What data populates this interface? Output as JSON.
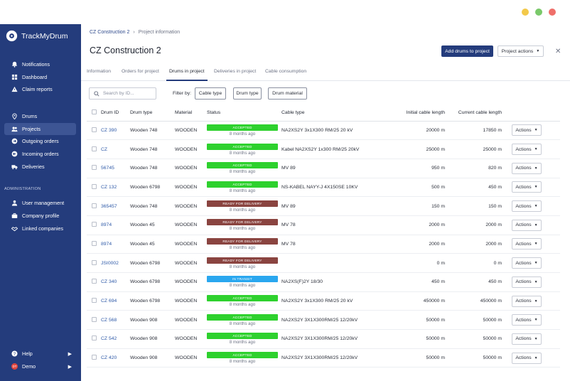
{
  "window": {
    "dots": [
      "#f3c94a",
      "#7ac96a",
      "#ef6f6a"
    ]
  },
  "brand": {
    "name": "TrackMyDrum"
  },
  "sidebar": {
    "items": [
      {
        "label": "Notifications",
        "icon": "bell-icon"
      },
      {
        "label": "Dashboard",
        "icon": "dashboard-icon"
      },
      {
        "label": "Claim reports",
        "icon": "warning-icon"
      },
      {
        "label": "Drums",
        "icon": "location-pin-icon"
      },
      {
        "label": "Projects",
        "icon": "users-icon"
      },
      {
        "label": "Outgoing orders",
        "icon": "arrow-right-circle-icon"
      },
      {
        "label": "Incoming orders",
        "icon": "arrow-left-circle-icon"
      },
      {
        "label": "Deliveries",
        "icon": "truck-icon"
      }
    ],
    "admin_header": "ADMINISTRATION",
    "admin_items": [
      {
        "label": "User management",
        "icon": "user-group-icon"
      },
      {
        "label": "Company profile",
        "icon": "briefcase-icon"
      },
      {
        "label": "Linked companies",
        "icon": "handshake-icon"
      }
    ],
    "help_label": "Help",
    "user_label": "Demo",
    "user_initials": "DT"
  },
  "breadcrumb": {
    "parent": "CZ Construction 2",
    "current": "Project information"
  },
  "page": {
    "title": "CZ Construction 2",
    "add_button": "Add drums to project",
    "actions_button": "Project actions"
  },
  "tabs": [
    "Information",
    "Orders for project",
    "Drums in project",
    "Deliveries in project",
    "Cable consumption"
  ],
  "active_tab": "Drums in project",
  "search": {
    "placeholder": "Search by ID..."
  },
  "filters": {
    "label": "Filter by:",
    "buttons": [
      "Cable type",
      "Drum type",
      "Drum material"
    ]
  },
  "table": {
    "headers": [
      "Drum ID",
      "Drum type",
      "Material",
      "Status",
      "Cable type",
      "Initial cable length",
      "Current cable length"
    ],
    "action_label": "Actions",
    "rows": [
      {
        "id": "CZ 390",
        "type": "Wooden 748",
        "material": "WOODEN",
        "status": "ACCEPTED",
        "status_color": "#2ed12e",
        "age": "8 months ago",
        "cable": "NA2XS2Y 3x1X300 RM/25 20 kV",
        "initial": "20000 m",
        "current": "17850 m"
      },
      {
        "id": "CZ",
        "type": "Wooden 748",
        "material": "WOODEN",
        "status": "ACCEPTED",
        "status_color": "#2ed12e",
        "age": "8 months ago",
        "cable": "Kabel NA2XS2Y 1x300 RM/25 20kV",
        "initial": "25000 m",
        "current": "25000 m"
      },
      {
        "id": "56745",
        "type": "Wooden 748",
        "material": "WOODEN",
        "status": "ACCEPTED",
        "status_color": "#2ed12e",
        "age": "8 months ago",
        "cable": "MV 89",
        "initial": "950 m",
        "current": "820 m"
      },
      {
        "id": "CZ 132",
        "type": "Wooden 6798",
        "material": "WOODEN",
        "status": "ACCEPTED",
        "status_color": "#2ed12e",
        "age": "8 months ago",
        "cable": "NS-KABEL NAYY-J 4X150SE 10KV",
        "initial": "500 m",
        "current": "450 m"
      },
      {
        "id": "365457",
        "type": "Wooden 748",
        "material": "WOODEN",
        "status": "READY FOR DELIVERY",
        "status_color": "#8a4440",
        "age": "8 months ago",
        "cable": "MV 89",
        "initial": "150 m",
        "current": "150 m"
      },
      {
        "id": "8974",
        "type": "Wooden 45",
        "material": "WOODEN",
        "status": "READY FOR DELIVERY",
        "status_color": "#8a4440",
        "age": "8 months ago",
        "cable": "MV 78",
        "initial": "2000 m",
        "current": "2000 m"
      },
      {
        "id": "8974",
        "type": "Wooden 45",
        "material": "WOODEN",
        "status": "READY FOR DELIVERY",
        "status_color": "#8a4440",
        "age": "8 months ago",
        "cable": "MV 78",
        "initial": "2000 m",
        "current": "2000 m"
      },
      {
        "id": "JSI0002",
        "type": "Wooden 6798",
        "material": "WOODEN",
        "status": "READY FOR DELIVERY",
        "status_color": "#8a4440",
        "age": "8 months ago",
        "cable": "",
        "initial": "0 m",
        "current": "0 m"
      },
      {
        "id": "CZ 340",
        "type": "Wooden 6798",
        "material": "WOODEN",
        "status": "IN TRANSIT",
        "status_color": "#2aa7ef",
        "age": "8 months ago",
        "cable": "NA2XS(F)2Y 18/30",
        "initial": "450 m",
        "current": "450 m"
      },
      {
        "id": "CZ 694",
        "type": "Wooden 6798",
        "material": "WOODEN",
        "status": "ACCEPTED",
        "status_color": "#2ed12e",
        "age": "8 months ago",
        "cable": "NA2XS2Y 3x1X300 RM/25 20 kV",
        "initial": "450000 m",
        "current": "450000 m"
      },
      {
        "id": "CZ 568",
        "type": "Wooden 908",
        "material": "WOODEN",
        "status": "ACCEPTED",
        "status_color": "#2ed12e",
        "age": "8 months ago",
        "cable": "NA2XS2Y 3X1X300RM/25 12/20kV",
        "initial": "50000 m",
        "current": "50000 m"
      },
      {
        "id": "CZ 542",
        "type": "Wooden 908",
        "material": "WOODEN",
        "status": "ACCEPTED",
        "status_color": "#2ed12e",
        "age": "8 months ago",
        "cable": "NA2XS2Y 3X1X300RM/25 12/20kV",
        "initial": "50000 m",
        "current": "50000 m"
      },
      {
        "id": "CZ 420",
        "type": "Wooden 908",
        "material": "WOODEN",
        "status": "ACCEPTED",
        "status_color": "#2ed12e",
        "age": "8 months ago",
        "cable": "NA2XS2Y 3X1X300RM/25 12/20kV",
        "initial": "50000 m",
        "current": "50000 m"
      }
    ]
  }
}
